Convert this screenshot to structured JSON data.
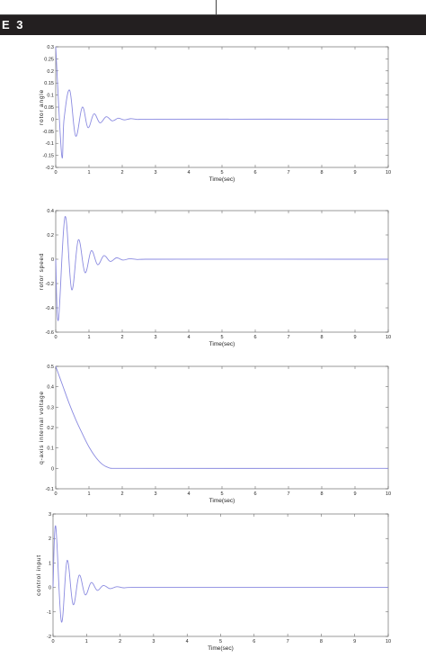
{
  "header": {
    "banner_text": "E 3"
  },
  "chart_data": [
    {
      "type": "line",
      "title": "",
      "xlabel": "Time(sec)",
      "ylabel": "rotor angle",
      "xlim": [
        0,
        10
      ],
      "ylim": [
        -0.2,
        0.3
      ],
      "xticks": [
        0,
        1,
        2,
        3,
        4,
        5,
        6,
        7,
        8,
        9,
        10
      ],
      "yticks": [
        -0.2,
        -0.15,
        -0.1,
        -0.05,
        0,
        0.05,
        0.1,
        0.15,
        0.2,
        0.25,
        0.3
      ],
      "ytick_labels": [
        "-0.2",
        "-0.15",
        "-0.1",
        "-0.05",
        "0",
        "0.05",
        "0.1",
        "0.15",
        "0.2",
        "0.25",
        "0.3"
      ],
      "grid": false,
      "series_color": "#8a8ae0",
      "series": [
        {
          "x": [
            0,
            0.18,
            0.25,
            0.42,
            0.6,
            0.8,
            0.97,
            1.15,
            1.33,
            1.52,
            1.7,
            1.88,
            2.06,
            2.25,
            2.45,
            2.7,
            10
          ],
          "y": [
            0.3,
            -0.15,
            0.0,
            0.12,
            -0.07,
            0.05,
            -0.035,
            0.022,
            -0.015,
            0.01,
            -0.007,
            0.004,
            -0.003,
            0.002,
            -0.001,
            0,
            0
          ]
        }
      ]
    },
    {
      "type": "line",
      "title": "",
      "xlabel": "Time(sec)",
      "ylabel": "rotor speed",
      "xlim": [
        0,
        10
      ],
      "ylim": [
        -0.6,
        0.4
      ],
      "xticks": [
        0,
        1,
        2,
        3,
        4,
        5,
        6,
        7,
        8,
        9,
        10
      ],
      "yticks": [
        -0.6,
        -0.4,
        -0.2,
        0,
        0.2,
        0.4
      ],
      "ytick_labels": [
        "-0.6",
        "-0.4",
        "-0.2",
        "0",
        "0.2",
        "0.4"
      ],
      "grid": false,
      "series_color": "#8a8ae0",
      "series": [
        {
          "x": [
            0,
            0.08,
            0.28,
            0.48,
            0.68,
            0.88,
            1.07,
            1.26,
            1.45,
            1.64,
            1.83,
            2.02,
            2.22,
            2.45,
            2.7,
            10
          ],
          "y": [
            0,
            -0.5,
            0.35,
            -0.25,
            0.16,
            -0.11,
            0.07,
            -0.045,
            0.03,
            -0.018,
            0.012,
            -0.007,
            0.004,
            -0.002,
            0,
            0
          ]
        }
      ]
    },
    {
      "type": "line",
      "title": "",
      "xlabel": "Time(sec)",
      "ylabel": "q-axis internal voltage",
      "xlim": [
        0,
        10
      ],
      "ylim": [
        -0.1,
        0.5
      ],
      "xticks": [
        0,
        1,
        2,
        3,
        4,
        5,
        6,
        7,
        8,
        9,
        10
      ],
      "yticks": [
        -0.1,
        0,
        0.1,
        0.2,
        0.3,
        0.4,
        0.5
      ],
      "ytick_labels": [
        "-0.1",
        "0",
        "0.1",
        "0.2",
        "0.3",
        "0.4",
        "0.5"
      ],
      "grid": false,
      "series_color": "#8a8ae0",
      "series": [
        {
          "x": [
            0,
            0.2,
            0.4,
            0.6,
            0.8,
            1.0,
            1.2,
            1.4,
            1.6,
            1.8,
            10
          ],
          "y": [
            0.5,
            0.41,
            0.32,
            0.24,
            0.17,
            0.105,
            0.055,
            0.02,
            0.003,
            0,
            0
          ]
        }
      ]
    },
    {
      "type": "line",
      "title": "",
      "xlabel": "Time(sec)",
      "ylabel": "control input",
      "xlim": [
        0,
        10
      ],
      "ylim": [
        -2,
        3
      ],
      "xticks": [
        0,
        1,
        2,
        3,
        4,
        5,
        6,
        7,
        8,
        9,
        10
      ],
      "yticks": [
        -2,
        -1,
        0,
        1,
        2,
        3
      ],
      "ytick_labels": [
        "-2",
        "-1",
        "0",
        "1",
        "2",
        "3"
      ],
      "grid": false,
      "series_color": "#8a8ae0",
      "series": [
        {
          "x": [
            0,
            0.08,
            0.25,
            0.42,
            0.6,
            0.78,
            0.96,
            1.14,
            1.32,
            1.5,
            1.7,
            1.9,
            2.1,
            2.35,
            10
          ],
          "y": [
            0,
            2.5,
            -1.4,
            1.1,
            -0.7,
            0.5,
            -0.3,
            0.2,
            -0.12,
            0.08,
            -0.05,
            0.03,
            -0.015,
            0,
            0
          ]
        }
      ]
    }
  ]
}
